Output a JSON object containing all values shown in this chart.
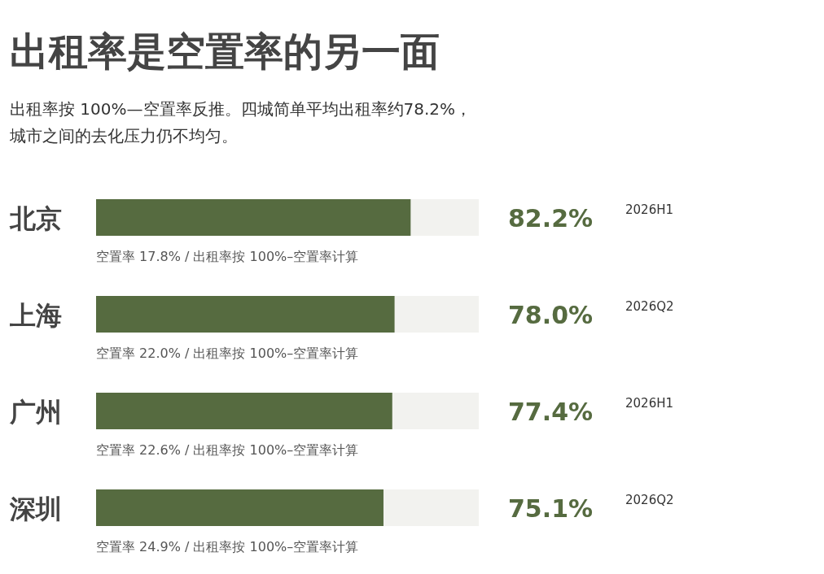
{
  "chart_data": {
    "type": "bar",
    "orientation": "horizontal",
    "title": "出租率是空置率的另一面",
    "subtitle": "出租率按 100%—空置率反推。四城简单平均出租率约78.2%，城市之间的去化压力仍不均匀。",
    "categories": [
      "北京",
      "上海",
      "广州",
      "深圳"
    ],
    "values": [
      82.2,
      78.0,
      77.4,
      75.1
    ],
    "value_labels": [
      "82.2%",
      "78.0%",
      "77.4%",
      "75.1%"
    ],
    "color": "#566b40",
    "xlim": [
      0,
      100
    ],
    "annotations": [
      "空置率 17.8% / 出租率按 100%–空置率计算",
      "2026H1",
      "空置率 22.0% / 出租率按 100%–空置率计算",
      "2026Q2",
      "空置率 22.6% / 出租率按 100%–空置率计算",
      "2026H1",
      "空置率 24.9% / 出租率按 100%–空置率计算",
      "2026Q2"
    ]
  }
}
